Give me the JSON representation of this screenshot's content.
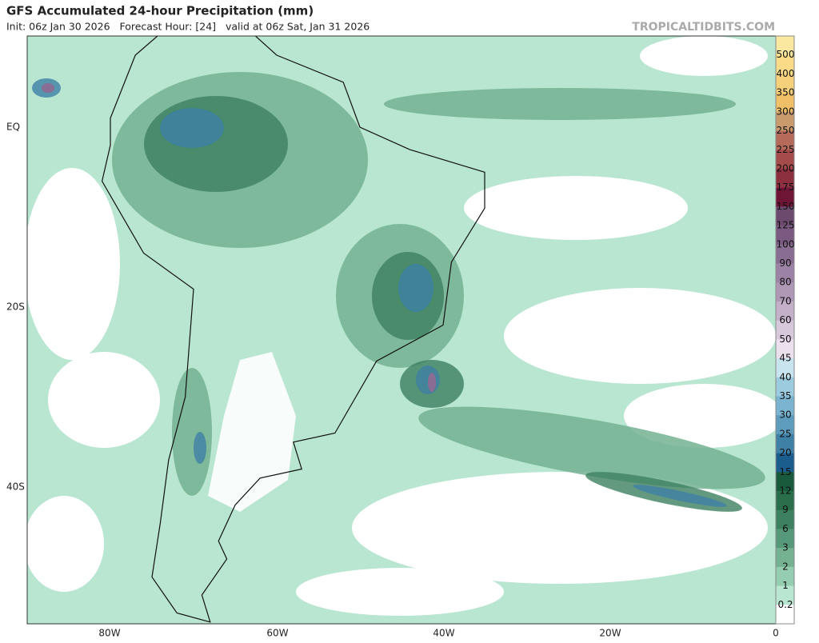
{
  "header": {
    "title": "GFS Accumulated 24-hour Precipitation (mm)",
    "subtitle": "Init: 06z Jan 30 2026   Forecast Hour: [24]   valid at 06z Sat, Jan 31 2026",
    "site": "TROPICALTIDBITS.COM"
  },
  "axes": {
    "x_labels": [
      "80W",
      "60W",
      "40W",
      "20W",
      "0"
    ],
    "y_labels": [
      "EQ",
      "20S",
      "40S"
    ]
  },
  "colorbar": {
    "labels": [
      500,
      400,
      350,
      300,
      250,
      225,
      200,
      175,
      150,
      125,
      100,
      90,
      80,
      70,
      60,
      50,
      45,
      40,
      35,
      30,
      25,
      20,
      15,
      12,
      9,
      6,
      3,
      2,
      1,
      0.2
    ],
    "colors": [
      "#fbe8a0",
      "#fadc88",
      "#f6d07a",
      "#f0c068",
      "#c99a6c",
      "#b66a5a",
      "#a64b4b",
      "#8c2f3f",
      "#6e1536",
      "#6b4a6e",
      "#7a5a80",
      "#8a6d92",
      "#9c82a4",
      "#af98b6",
      "#c4b0c9",
      "#d8c8dc",
      "#ece0ee",
      "#c8e4ee",
      "#9ccbe0",
      "#7ab4d0",
      "#5d9cbc",
      "#3f80a6",
      "#1b5e8e",
      "#1a5a3c",
      "#2a6e4c",
      "#3c8060",
      "#56987a",
      "#74b292",
      "#94cdb0",
      "#b8e6d0",
      "#ffffff"
    ]
  }
}
